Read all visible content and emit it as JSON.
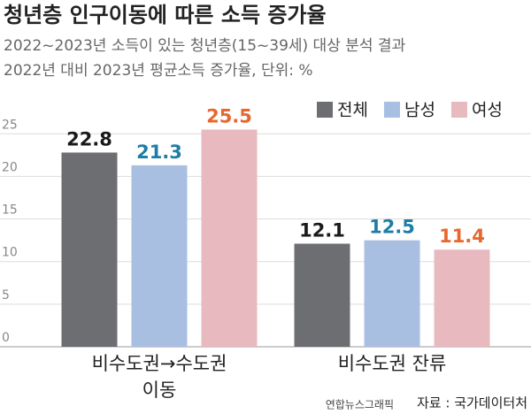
{
  "chart_data": {
    "type": "bar",
    "title": "청년층 인구이동에 따른 소득 증가율",
    "subtitle": [
      "2022~2023년 소득이 있는 청년층(15~39세) 대상 분석 결과",
      "2022년 대비 2023년 평균소득 증가율, 단위: %"
    ],
    "categories": [
      [
        "비수도권→수도권",
        "이동"
      ],
      [
        "비수도권 잔류"
      ]
    ],
    "series": [
      {
        "name": "전체",
        "color": "#6d6e71",
        "label_color": "#1a1a1a",
        "values": [
          22.8,
          12.1
        ]
      },
      {
        "name": "남성",
        "color": "#a9bfe2",
        "label_color": "#1e7ea6",
        "values": [
          21.3,
          12.5
        ]
      },
      {
        "name": "여성",
        "color": "#e9b9c0",
        "label_color": "#e8672c",
        "values": [
          25.5,
          11.4
        ]
      }
    ],
    "ylim": [
      0,
      27
    ],
    "yticks": [
      0,
      5,
      10,
      15,
      20,
      25
    ],
    "grid": true,
    "legend": "top-right",
    "source": [
      "연합뉴스그래픽",
      "자료 : 국가데이터처"
    ]
  }
}
